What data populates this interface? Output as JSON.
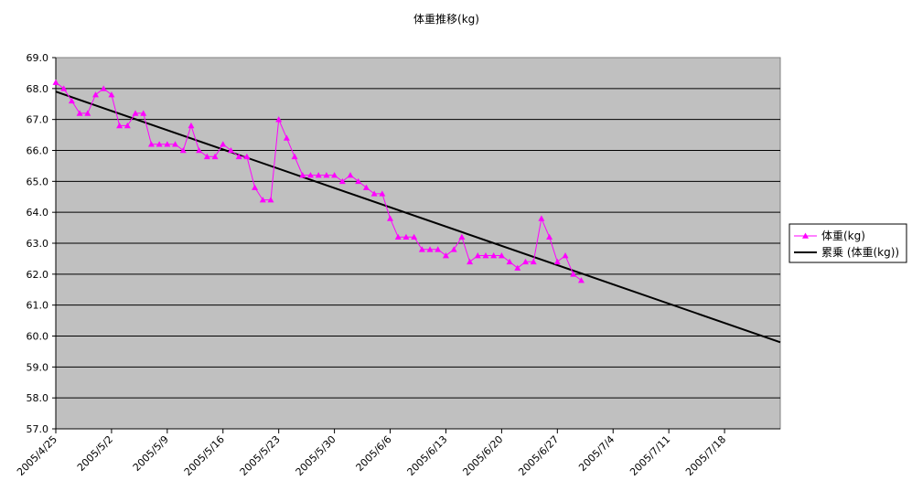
{
  "chart_data": {
    "type": "line",
    "title": "体重推移(kg)",
    "ylim": [
      57.0,
      69.0
    ],
    "y_ticks": [
      "69.0",
      "68.0",
      "67.0",
      "66.0",
      "65.0",
      "64.0",
      "63.0",
      "62.0",
      "61.0",
      "60.0",
      "59.0",
      "58.0",
      "57.0"
    ],
    "x_ticks": [
      "2005/4/25",
      "2005/5/2",
      "2005/5/9",
      "2005/5/16",
      "2005/5/23",
      "2005/5/30",
      "2005/6/6",
      "2005/6/13",
      "2005/6/20",
      "2005/6/27",
      "2005/7/4",
      "2005/7/11",
      "2005/7/18"
    ],
    "x_range_days": [
      0,
      91
    ],
    "x_unit": "days since 2005/4/25",
    "grid": true,
    "legend_position": "right",
    "series": [
      {
        "name": "体重(kg)",
        "color": "#ff00ff",
        "marker": "triangle",
        "x": [
          0,
          1,
          2,
          3,
          4,
          5,
          6,
          7,
          8,
          9,
          10,
          11,
          12,
          13,
          14,
          15,
          16,
          17,
          18,
          19,
          20,
          21,
          22,
          23,
          24,
          25,
          26,
          27,
          28,
          29,
          30,
          31,
          32,
          33,
          34,
          35,
          36,
          37,
          38,
          39,
          40,
          41,
          42,
          43,
          44,
          45,
          46,
          47,
          48,
          49,
          50,
          51,
          52,
          53,
          54,
          55,
          56,
          57,
          58,
          59,
          60,
          61,
          62,
          63,
          64,
          65,
          66
        ],
        "values": [
          68.2,
          68.0,
          67.6,
          67.2,
          67.2,
          67.8,
          68.0,
          67.8,
          66.8,
          66.8,
          67.2,
          67.2,
          66.2,
          66.2,
          66.2,
          66.2,
          66.0,
          66.8,
          66.0,
          65.8,
          65.8,
          66.2,
          66.0,
          65.8,
          65.8,
          64.8,
          64.4,
          64.4,
          67.0,
          66.4,
          65.8,
          65.2,
          65.2,
          65.2,
          65.2,
          65.2,
          65.0,
          65.2,
          65.0,
          64.8,
          64.6,
          64.6,
          63.8,
          63.2,
          63.2,
          63.2,
          62.8,
          62.8,
          62.8,
          62.6,
          62.8,
          63.2,
          62.4,
          62.6,
          62.6,
          62.6,
          62.6,
          62.4,
          62.2,
          62.4,
          62.4,
          63.8,
          63.2,
          62.4,
          62.6,
          62.0,
          61.8
        ]
      },
      {
        "name": "累乗 (体重(kg))",
        "color": "#000000",
        "marker": "none",
        "x": [
          0,
          91
        ],
        "values": [
          67.9,
          59.8
        ]
      }
    ]
  }
}
